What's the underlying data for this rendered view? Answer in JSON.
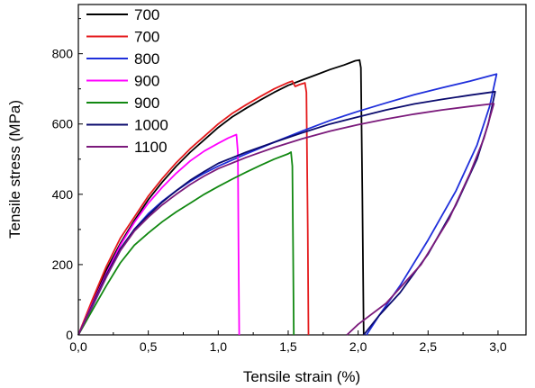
{
  "chart_data": {
    "type": "line",
    "xlabel": "Tensile strain (%)",
    "ylabel": "Tensile stress (MPa)",
    "xlim": [
      0,
      3.2
    ],
    "ylim": [
      0,
      940
    ],
    "x_ticks": [
      "0,0",
      "0,5",
      "1,0",
      "1,5",
      "2,0",
      "2,5",
      "3,0"
    ],
    "x_tick_values": [
      0,
      0.5,
      1.0,
      1.5,
      2.0,
      2.5,
      3.0
    ],
    "y_ticks": [
      "0",
      "200",
      "400",
      "600",
      "800"
    ],
    "y_tick_values": [
      0,
      200,
      400,
      600,
      800
    ],
    "grid": false,
    "legend_position": "top-left",
    "series": [
      {
        "name": "700",
        "color": "#000000",
        "points": [
          [
            0,
            0
          ],
          [
            0.1,
            95
          ],
          [
            0.2,
            185
          ],
          [
            0.3,
            260
          ],
          [
            0.4,
            325
          ],
          [
            0.5,
            385
          ],
          [
            0.6,
            435
          ],
          [
            0.7,
            480
          ],
          [
            0.8,
            520
          ],
          [
            0.9,
            555
          ],
          [
            1.0,
            590
          ],
          [
            1.1,
            620
          ],
          [
            1.2,
            645
          ],
          [
            1.3,
            668
          ],
          [
            1.4,
            690
          ],
          [
            1.5,
            710
          ],
          [
            1.6,
            725
          ],
          [
            1.7,
            740
          ],
          [
            1.8,
            755
          ],
          [
            1.9,
            768
          ],
          [
            1.98,
            780
          ],
          [
            2.01,
            782
          ],
          [
            2.02,
            760
          ],
          [
            2.03,
            400
          ],
          [
            2.04,
            0
          ]
        ]
      },
      {
        "name": "700",
        "color": "#e41a1c",
        "points": [
          [
            0,
            0
          ],
          [
            0.1,
            100
          ],
          [
            0.2,
            195
          ],
          [
            0.3,
            275
          ],
          [
            0.4,
            335
          ],
          [
            0.5,
            395
          ],
          [
            0.6,
            445
          ],
          [
            0.7,
            490
          ],
          [
            0.8,
            530
          ],
          [
            0.9,
            565
          ],
          [
            1.0,
            600
          ],
          [
            1.1,
            630
          ],
          [
            1.2,
            655
          ],
          [
            1.3,
            678
          ],
          [
            1.4,
            700
          ],
          [
            1.5,
            718
          ],
          [
            1.53,
            722
          ],
          [
            1.55,
            707
          ],
          [
            1.58,
            712
          ],
          [
            1.62,
            717
          ],
          [
            1.63,
            690
          ],
          [
            1.64,
            300
          ],
          [
            1.645,
            0
          ]
        ]
      },
      {
        "name": "800",
        "color": "#1f2fdb",
        "points": [
          [
            0,
            0
          ],
          [
            0.1,
            80
          ],
          [
            0.2,
            165
          ],
          [
            0.3,
            240
          ],
          [
            0.4,
            300
          ],
          [
            0.5,
            345
          ],
          [
            0.6,
            380
          ],
          [
            0.7,
            410
          ],
          [
            0.8,
            437
          ],
          [
            0.9,
            460
          ],
          [
            1.0,
            480
          ],
          [
            1.2,
            515
          ],
          [
            1.4,
            548
          ],
          [
            1.6,
            580
          ],
          [
            1.8,
            610
          ],
          [
            2.0,
            636
          ],
          [
            2.2,
            660
          ],
          [
            2.4,
            683
          ],
          [
            2.6,
            703
          ],
          [
            2.8,
            722
          ],
          [
            2.99,
            742
          ],
          [
            2.94,
            650
          ],
          [
            2.85,
            540
          ],
          [
            2.7,
            410
          ],
          [
            2.5,
            270
          ],
          [
            2.3,
            140
          ],
          [
            2.15,
            55
          ],
          [
            2.06,
            0
          ]
        ]
      },
      {
        "name": "900",
        "color": "#ff00ff",
        "points": [
          [
            0,
            0
          ],
          [
            0.1,
            88
          ],
          [
            0.2,
            175
          ],
          [
            0.3,
            255
          ],
          [
            0.4,
            320
          ],
          [
            0.5,
            375
          ],
          [
            0.6,
            420
          ],
          [
            0.7,
            460
          ],
          [
            0.8,
            495
          ],
          [
            0.9,
            523
          ],
          [
            1.0,
            545
          ],
          [
            1.07,
            560
          ],
          [
            1.13,
            570
          ],
          [
            1.14,
            520
          ],
          [
            1.145,
            250
          ],
          [
            1.15,
            0
          ]
        ]
      },
      {
        "name": "900",
        "color": "#118811",
        "points": [
          [
            0,
            0
          ],
          [
            0.1,
            70
          ],
          [
            0.2,
            140
          ],
          [
            0.3,
            205
          ],
          [
            0.4,
            255
          ],
          [
            0.5,
            290
          ],
          [
            0.6,
            322
          ],
          [
            0.7,
            350
          ],
          [
            0.8,
            375
          ],
          [
            0.9,
            400
          ],
          [
            1.0,
            422
          ],
          [
            1.1,
            443
          ],
          [
            1.2,
            463
          ],
          [
            1.3,
            482
          ],
          [
            1.4,
            500
          ],
          [
            1.5,
            515
          ],
          [
            1.52,
            520
          ],
          [
            1.53,
            480
          ],
          [
            1.535,
            250
          ],
          [
            1.54,
            0
          ]
        ]
      },
      {
        "name": "1000",
        "color": "#0b0b6e",
        "points": [
          [
            0,
            0
          ],
          [
            0.1,
            85
          ],
          [
            0.2,
            170
          ],
          [
            0.3,
            245
          ],
          [
            0.4,
            300
          ],
          [
            0.5,
            340
          ],
          [
            0.6,
            378
          ],
          [
            0.7,
            410
          ],
          [
            0.8,
            440
          ],
          [
            0.9,
            465
          ],
          [
            1.0,
            488
          ],
          [
            1.2,
            520
          ],
          [
            1.4,
            548
          ],
          [
            1.6,
            575
          ],
          [
            1.8,
            600
          ],
          [
            2.0,
            620
          ],
          [
            2.2,
            640
          ],
          [
            2.4,
            657
          ],
          [
            2.6,
            670
          ],
          [
            2.8,
            682
          ],
          [
            2.98,
            692
          ],
          [
            2.93,
            600
          ],
          [
            2.85,
            500
          ],
          [
            2.7,
            370
          ],
          [
            2.5,
            230
          ],
          [
            2.3,
            120
          ],
          [
            2.15,
            55
          ],
          [
            2.04,
            0
          ]
        ]
      },
      {
        "name": "1100",
        "color": "#7b1a7b",
        "points": [
          [
            0,
            0
          ],
          [
            0.1,
            82
          ],
          [
            0.2,
            165
          ],
          [
            0.3,
            240
          ],
          [
            0.4,
            295
          ],
          [
            0.5,
            335
          ],
          [
            0.6,
            370
          ],
          [
            0.7,
            400
          ],
          [
            0.8,
            428
          ],
          [
            0.9,
            452
          ],
          [
            1.0,
            473
          ],
          [
            1.2,
            505
          ],
          [
            1.4,
            533
          ],
          [
            1.6,
            558
          ],
          [
            1.8,
            580
          ],
          [
            2.0,
            598
          ],
          [
            2.2,
            614
          ],
          [
            2.4,
            628
          ],
          [
            2.6,
            640
          ],
          [
            2.8,
            650
          ],
          [
            2.97,
            658
          ],
          [
            2.9,
            560
          ],
          [
            2.8,
            460
          ],
          [
            2.65,
            330
          ],
          [
            2.45,
            200
          ],
          [
            2.2,
            90
          ],
          [
            2.0,
            30
          ],
          [
            1.92,
            0
          ]
        ]
      }
    ]
  }
}
